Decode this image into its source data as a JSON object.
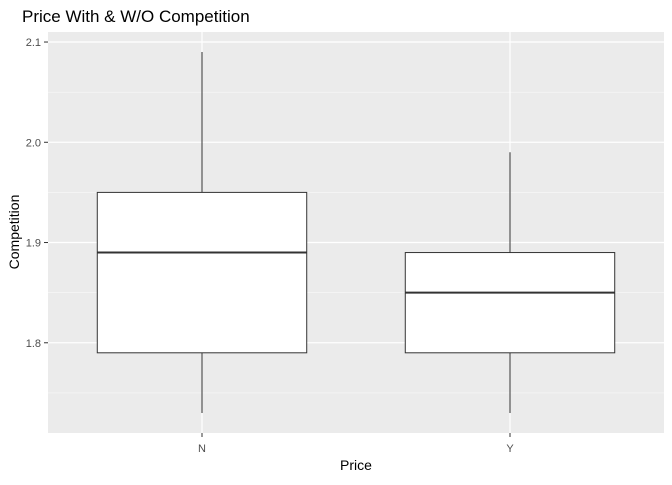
{
  "chart_data": {
    "type": "boxplot",
    "title": "Price With & W/O Competition",
    "xlabel": "Price",
    "ylabel": "Competition",
    "categories": [
      "N",
      "Y"
    ],
    "boxes": [
      {
        "category": "N",
        "min": 1.73,
        "q1": 1.79,
        "median": 1.89,
        "q3": 1.95,
        "max": 2.09
      },
      {
        "category": "Y",
        "min": 1.73,
        "q1": 1.79,
        "median": 1.85,
        "q3": 1.89,
        "max": 1.99
      }
    ],
    "ylim": [
      1.71,
      2.11
    ],
    "yticks": [
      1.8,
      1.9,
      2.0,
      2.1
    ],
    "ytick_labels": [
      "1.8",
      "1.9",
      "2.0",
      "2.1"
    ],
    "grid": true,
    "colors": {
      "panel_background": "#EBEBEB",
      "grid_major": "#FFFFFF",
      "box_fill": "#FFFFFF",
      "box_line": "#333333",
      "tick_label": "#4D4D4D",
      "text": "#000000"
    }
  }
}
